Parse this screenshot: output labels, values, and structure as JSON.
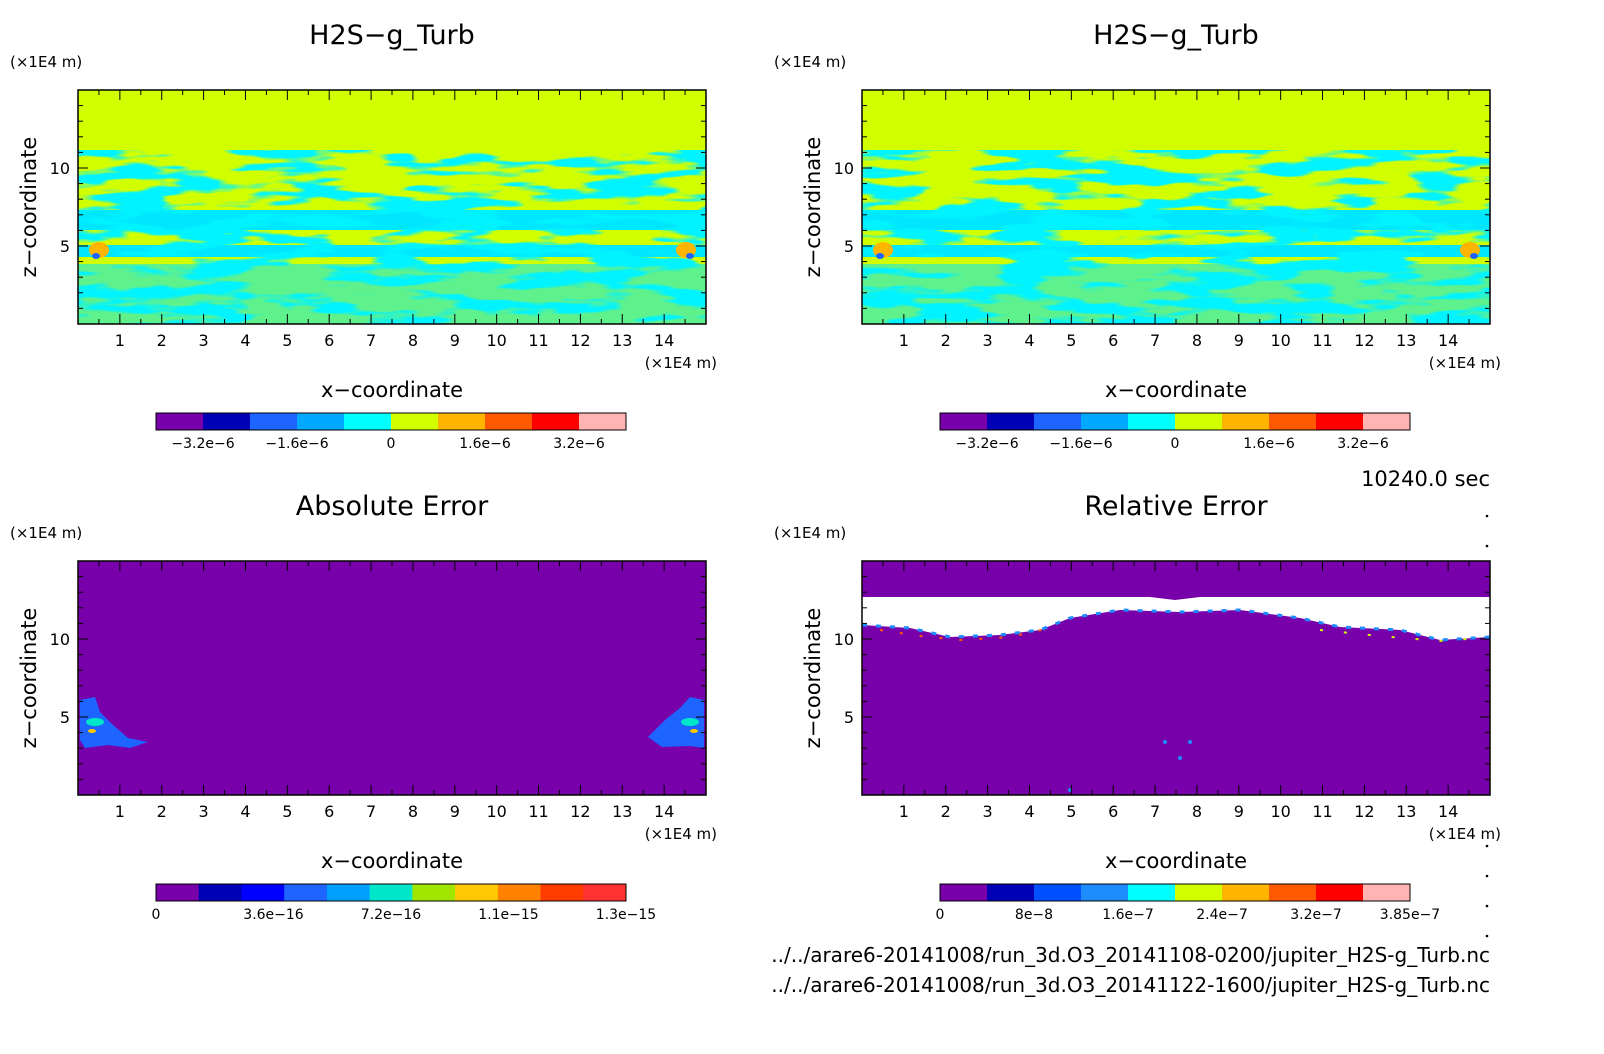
{
  "footer": {
    "time": "10240.0 sec",
    "file1": "../../arare6-20141008/run_3d.O3_20141108-0200/jupiter_H2S-g_Turb.nc",
    "file2": "../../arare6-20141008/run_3d.O3_20141122-1600/jupiter_H2S-g_Turb.nc"
  },
  "chart_data": [
    {
      "type": "heatmap",
      "title": "H2S−g_Turb",
      "xlabel": "x−coordinate",
      "ylabel": "z−coordinate",
      "x_unit": "(×1E4 m)",
      "y_unit": "(×1E4 m)",
      "xlim": [
        0,
        15
      ],
      "ylim": [
        0,
        15
      ],
      "x_ticks": [
        "1",
        "2",
        "3",
        "4",
        "5",
        "6",
        "7",
        "8",
        "9",
        "10",
        "11",
        "12",
        "13",
        "14"
      ],
      "y_ticks": [
        "5",
        "10"
      ],
      "colorbar": {
        "colors": [
          "#7700aa",
          "#0000b4",
          "#1e64ff",
          "#00a8ff",
          "#00ffff",
          "#d2ff00",
          "#ffb400",
          "#ff5a00",
          "#ff0000",
          "#ffb4b4"
        ],
        "tick_labels": [
          "−3.2e−6",
          "−1.6e−6",
          "0",
          "1.6e−6",
          "3.2e−6"
        ]
      },
      "field": {
        "background": "#d2ff00",
        "pattern": "#00e6ff"
      }
    },
    {
      "type": "heatmap",
      "title": "H2S−g_Turb",
      "xlabel": "x−coordinate",
      "ylabel": "z−coordinate",
      "x_unit": "(×1E4 m)",
      "y_unit": "(×1E4 m)",
      "xlim": [
        0,
        15
      ],
      "ylim": [
        0,
        15
      ],
      "x_ticks": [
        "1",
        "2",
        "3",
        "4",
        "5",
        "6",
        "7",
        "8",
        "9",
        "10",
        "11",
        "12",
        "13",
        "14"
      ],
      "y_ticks": [
        "5",
        "10"
      ],
      "colorbar": {
        "colors": [
          "#7700aa",
          "#0000b4",
          "#1e64ff",
          "#00a8ff",
          "#00ffff",
          "#d2ff00",
          "#ffb400",
          "#ff5a00",
          "#ff0000",
          "#ffb4b4"
        ],
        "tick_labels": [
          "−3.2e−6",
          "−1.6e−6",
          "0",
          "1.6e−6",
          "3.2e−6"
        ]
      },
      "field": {
        "background": "#d2ff00",
        "pattern": "#00e6ff"
      }
    },
    {
      "type": "heatmap",
      "title": "Absolute Error",
      "xlabel": "x−coordinate",
      "ylabel": "z−coordinate",
      "x_unit": "(×1E4 m)",
      "y_unit": "(×1E4 m)",
      "xlim": [
        0,
        15
      ],
      "ylim": [
        0,
        15
      ],
      "x_ticks": [
        "1",
        "2",
        "3",
        "4",
        "5",
        "6",
        "7",
        "8",
        "9",
        "10",
        "11",
        "12",
        "13",
        "14"
      ],
      "y_ticks": [
        "5",
        "10"
      ],
      "colorbar": {
        "colors": [
          "#7700aa",
          "#0000b4",
          "#0000ff",
          "#1e64ff",
          "#00a0ff",
          "#00e6c8",
          "#a0e600",
          "#ffc800",
          "#ff8200",
          "#ff3c00",
          "#ff3232"
        ],
        "tick_labels": [
          "0",
          "3.6e−16",
          "7.2e−16",
          "1.1e−15",
          "1.3e−15"
        ]
      },
      "field": {
        "background": "#7700aa",
        "pattern": "#1e64ff"
      }
    },
    {
      "type": "heatmap",
      "title": "Relative Error",
      "xlabel": "x−coordinate",
      "ylabel": "z−coordinate",
      "x_unit": "(×1E4 m)",
      "y_unit": "(×1E4 m)",
      "xlim": [
        0,
        15
      ],
      "ylim": [
        0,
        15
      ],
      "x_ticks": [
        "1",
        "2",
        "3",
        "4",
        "5",
        "6",
        "7",
        "8",
        "9",
        "10",
        "11",
        "12",
        "13",
        "14"
      ],
      "y_ticks": [
        "5",
        "10"
      ],
      "colorbar": {
        "colors": [
          "#7700aa",
          "#0000b4",
          "#0050ff",
          "#1e8cff",
          "#00ffff",
          "#d2ff00",
          "#ffb400",
          "#ff5a00",
          "#ff0000",
          "#ffb4b4"
        ],
        "tick_labels": [
          "0",
          "8e−8",
          "1.6e−7",
          "2.4e−7",
          "3.2e−7",
          "3.85e−7"
        ]
      },
      "field": {
        "background": "#7700aa",
        "pattern": "#ffffff"
      }
    }
  ]
}
